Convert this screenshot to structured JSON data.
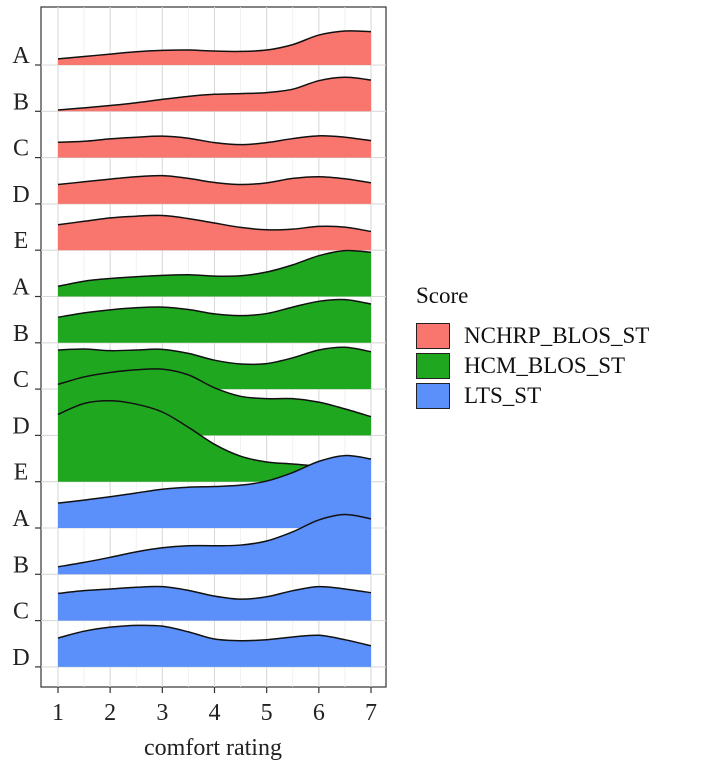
{
  "chart_data": {
    "type": "ridgeline",
    "xlabel": "comfort rating",
    "ylabel": "",
    "xlim": [
      1,
      7
    ],
    "x_ticks": [
      "1",
      "2",
      "3",
      "4",
      "5",
      "6",
      "7"
    ],
    "grid": true,
    "legend_position": "right",
    "legend": {
      "title": "Score",
      "entries": [
        {
          "name": "NCHRP_BLOS_ST",
          "color": "#F8766D"
        },
        {
          "name": "HCM_BLOS_ST",
          "color": "#1FA81F"
        },
        {
          "name": "LTS_ST",
          "color": "#5B8FF9"
        }
      ]
    },
    "x": [
      1,
      1.5,
      2,
      2.5,
      3,
      3.5,
      4,
      4.5,
      5,
      5.5,
      6,
      6.5,
      7
    ],
    "ridges": [
      {
        "label": "A",
        "group": "NCHRP_BLOS_ST",
        "color": "#F8766D",
        "density": [
          0.18,
          0.25,
          0.32,
          0.39,
          0.43,
          0.44,
          0.41,
          0.4,
          0.44,
          0.6,
          0.88,
          1.0,
          0.98
        ]
      },
      {
        "label": "B",
        "group": "NCHRP_BLOS_ST",
        "color": "#F8766D",
        "density": [
          0.04,
          0.1,
          0.17,
          0.25,
          0.35,
          0.44,
          0.5,
          0.52,
          0.55,
          0.65,
          0.9,
          1.0,
          0.92
        ]
      },
      {
        "label": "C",
        "group": "NCHRP_BLOS_ST",
        "color": "#F8766D",
        "density": [
          0.45,
          0.48,
          0.55,
          0.6,
          0.63,
          0.57,
          0.44,
          0.38,
          0.44,
          0.56,
          0.64,
          0.6,
          0.5
        ]
      },
      {
        "label": "D",
        "group": "NCHRP_BLOS_ST",
        "color": "#F8766D",
        "density": [
          0.57,
          0.65,
          0.73,
          0.8,
          0.83,
          0.75,
          0.63,
          0.57,
          0.62,
          0.75,
          0.8,
          0.74,
          0.62
        ]
      },
      {
        "label": "E",
        "group": "NCHRP_BLOS_ST",
        "color": "#F8766D",
        "density": [
          0.75,
          0.85,
          0.95,
          1.0,
          1.02,
          0.93,
          0.8,
          0.67,
          0.6,
          0.62,
          0.7,
          0.68,
          0.55
        ]
      },
      {
        "label": "A",
        "group": "HCM_BLOS_ST",
        "color": "#1FA81F",
        "density": [
          0.3,
          0.45,
          0.53,
          0.58,
          0.62,
          0.64,
          0.6,
          0.61,
          0.72,
          0.93,
          1.2,
          1.35,
          1.3
        ]
      },
      {
        "label": "B",
        "group": "HCM_BLOS_ST",
        "color": "#1FA81F",
        "density": [
          0.75,
          0.88,
          0.97,
          1.03,
          1.05,
          0.98,
          0.85,
          0.8,
          0.86,
          1.05,
          1.22,
          1.27,
          1.14
        ]
      },
      {
        "label": "C",
        "group": "HCM_BLOS_ST",
        "color": "#1FA81F",
        "density": [
          1.15,
          1.18,
          1.13,
          1.15,
          1.17,
          1.05,
          0.85,
          0.74,
          0.75,
          0.92,
          1.15,
          1.23,
          1.1
        ]
      },
      {
        "label": "D",
        "group": "HCM_BLOS_ST",
        "color": "#1FA81F",
        "density": [
          1.5,
          1.72,
          1.85,
          1.93,
          1.95,
          1.78,
          1.4,
          1.15,
          1.08,
          1.08,
          0.98,
          0.78,
          0.55
        ]
      },
      {
        "label": "E",
        "group": "HCM_BLOS_ST",
        "color": "#1FA81F",
        "density": [
          1.98,
          2.3,
          2.38,
          2.28,
          2.05,
          1.6,
          1.1,
          0.75,
          0.58,
          0.52,
          0.45,
          0.3,
          0.13
        ]
      },
      {
        "label": "A",
        "group": "LTS_ST",
        "color": "#5B8FF9",
        "density": [
          0.73,
          0.82,
          0.92,
          1.03,
          1.14,
          1.2,
          1.22,
          1.26,
          1.38,
          1.63,
          1.96,
          2.13,
          2.03
        ]
      },
      {
        "label": "B",
        "group": "LTS_ST",
        "color": "#5B8FF9",
        "density": [
          0.22,
          0.35,
          0.5,
          0.66,
          0.78,
          0.84,
          0.84,
          0.86,
          0.98,
          1.25,
          1.6,
          1.76,
          1.63
        ]
      },
      {
        "label": "C",
        "group": "LTS_ST",
        "color": "#5B8FF9",
        "density": [
          0.8,
          0.88,
          0.93,
          0.98,
          1.0,
          0.89,
          0.72,
          0.63,
          0.7,
          0.88,
          1.0,
          0.93,
          0.82
        ]
      },
      {
        "label": "D",
        "group": "LTS_ST",
        "color": "#5B8FF9",
        "density": [
          0.85,
          1.05,
          1.17,
          1.22,
          1.2,
          1.03,
          0.82,
          0.77,
          0.8,
          0.88,
          0.93,
          0.8,
          0.62
        ]
      }
    ]
  }
}
